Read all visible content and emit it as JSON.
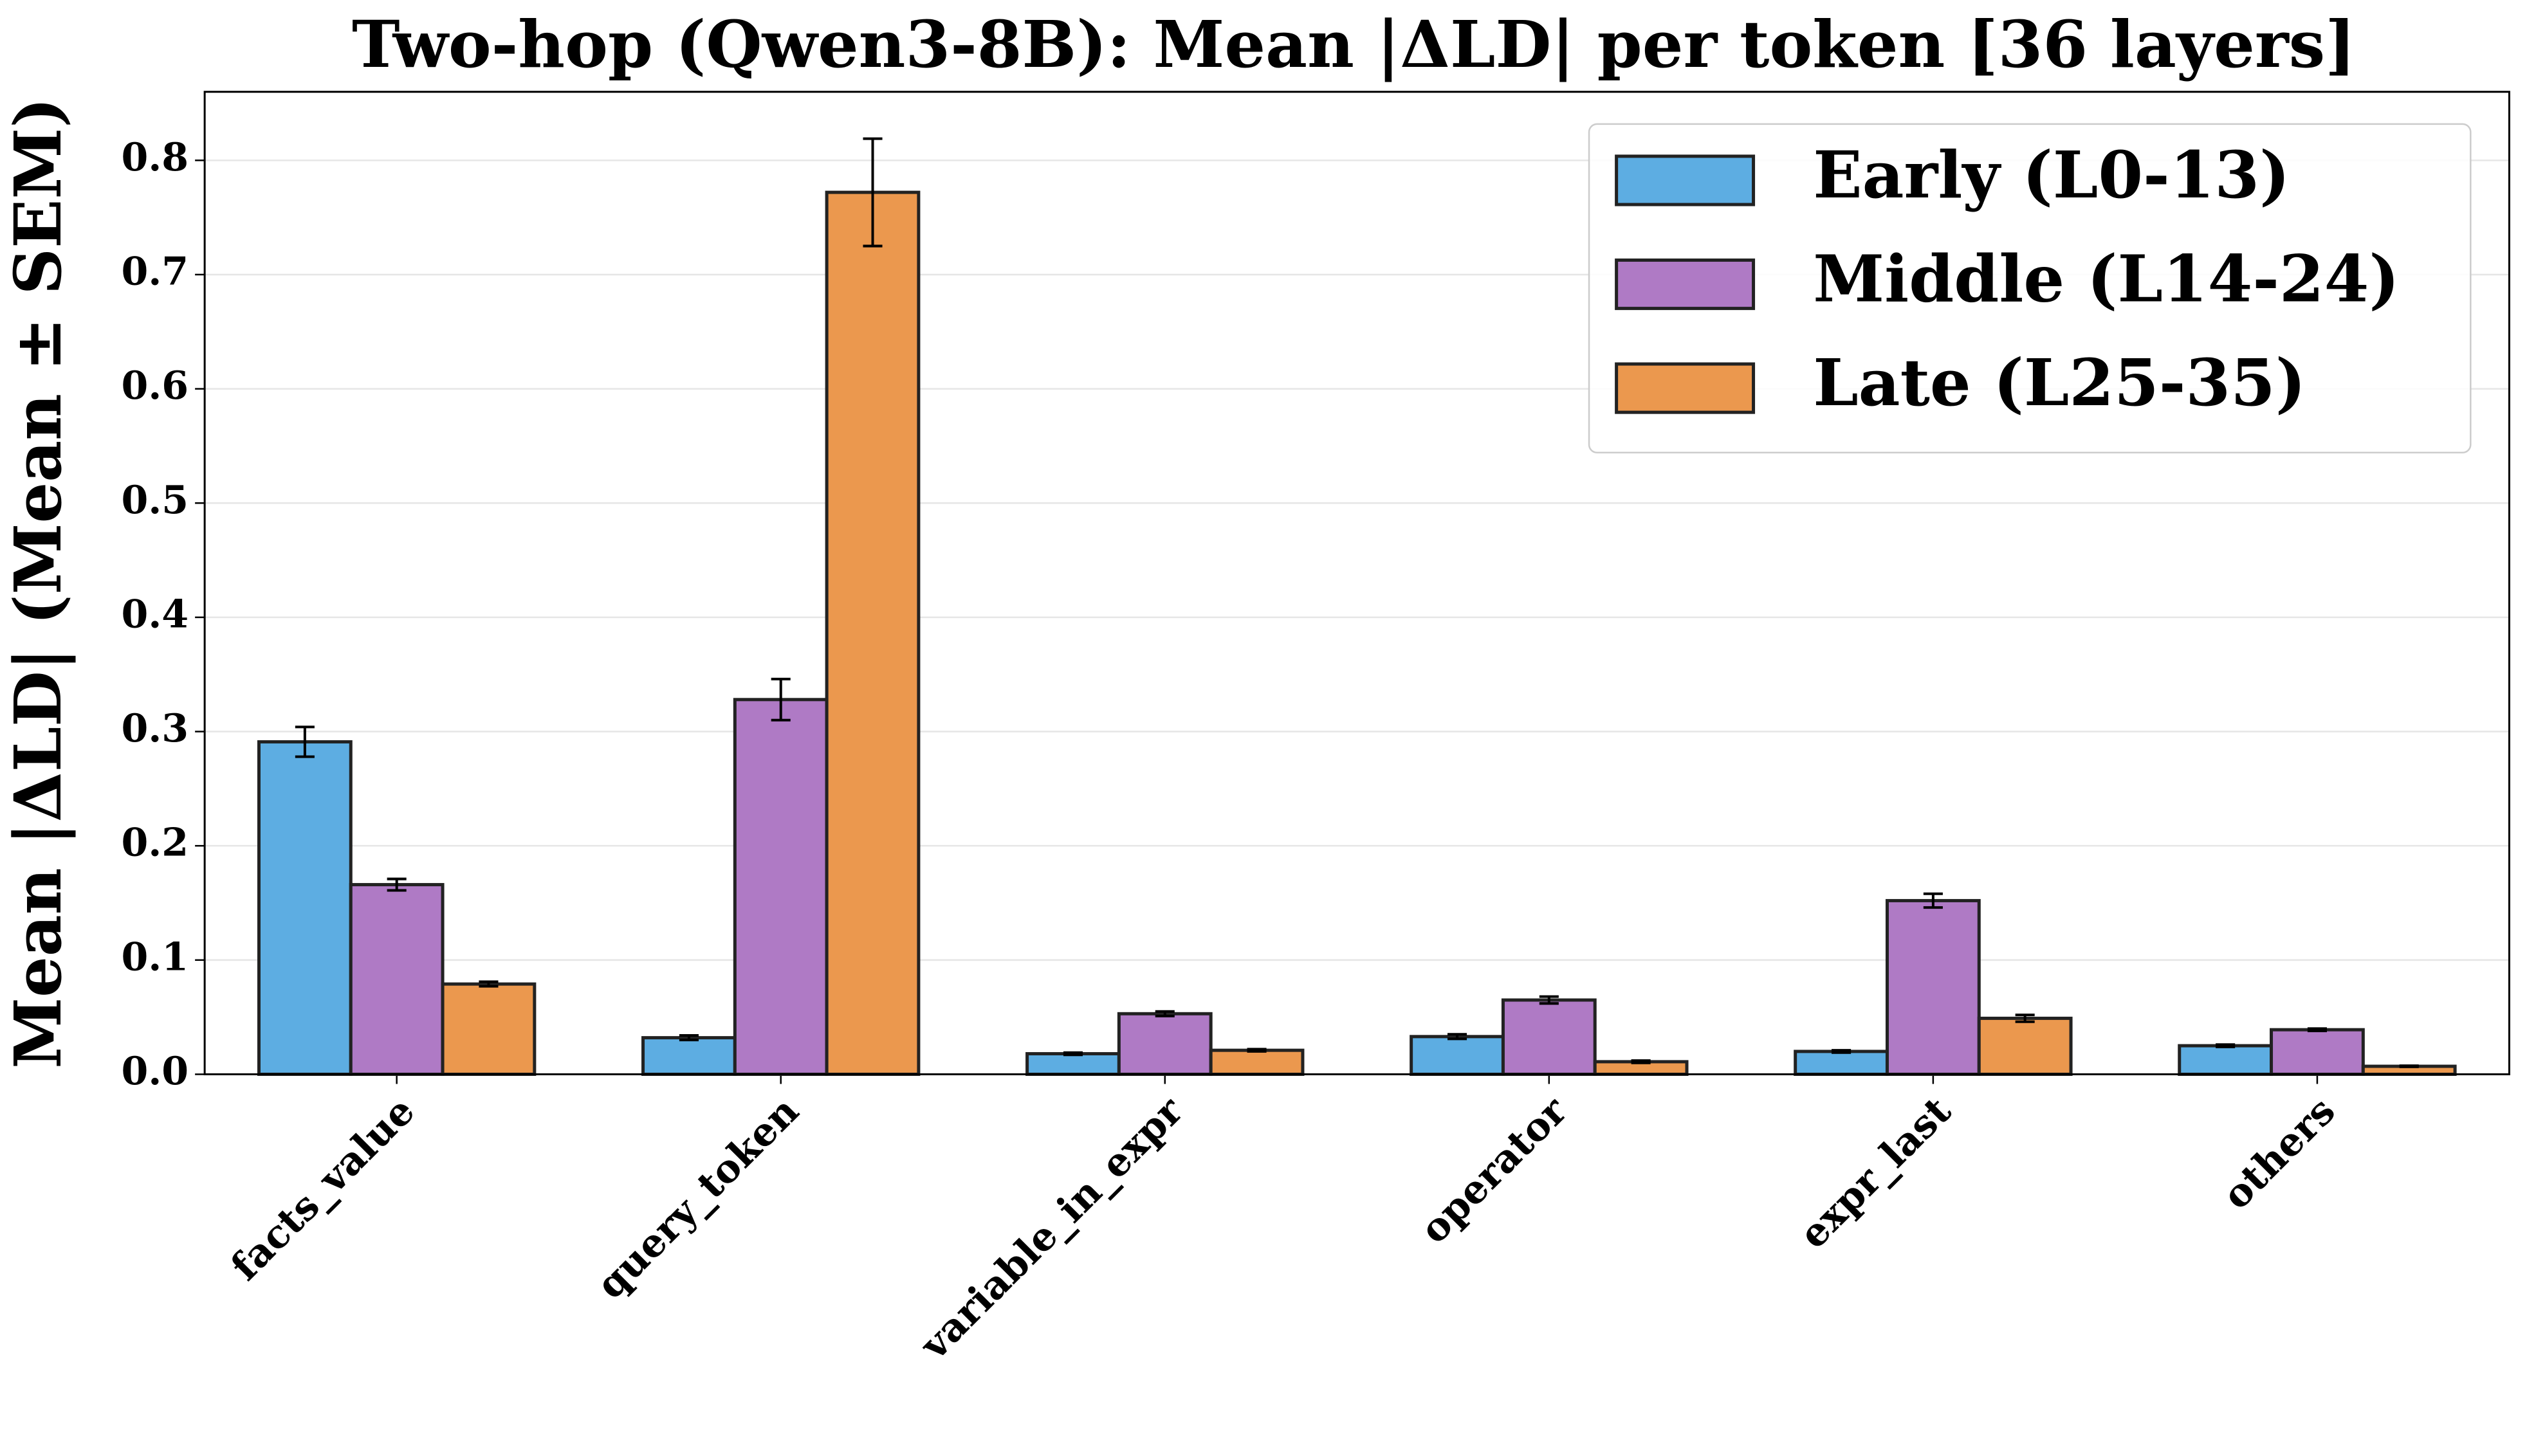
{
  "chart_data": {
    "type": "bar",
    "title": "Two-hop (Qwen3-8B): Mean |ΔLD| per token [36 layers]",
    "y_label": "Mean |ΔLD| (Mean ± SEM)",
    "categories": [
      "facts_value",
      "query_token",
      "variable_in_expr",
      "operator",
      "expr_last",
      "others"
    ],
    "series": [
      {
        "name": "Early (L0-13)",
        "color": "#5dade2",
        "values": [
          0.291,
          0.032,
          0.018,
          0.033,
          0.02,
          0.025
        ],
        "errors": [
          0.013,
          0.002,
          0.001,
          0.002,
          0.001,
          0.001
        ]
      },
      {
        "name": "Middle (L14-24)",
        "color": "#af7ac5",
        "values": [
          0.166,
          0.328,
          0.053,
          0.065,
          0.152,
          0.039
        ],
        "errors": [
          0.005,
          0.018,
          0.002,
          0.003,
          0.006,
          0.001
        ]
      },
      {
        "name": "Late (L25-35)",
        "color": "#eb984e",
        "values": [
          0.079,
          0.772,
          0.021,
          0.011,
          0.049,
          0.007
        ],
        "errors": [
          0.002,
          0.047,
          0.001,
          0.001,
          0.003,
          0.0005
        ]
      }
    ],
    "ylim": [
      0,
      0.86
    ],
    "yticks": [
      {
        "value": 0,
        "label": "0.0"
      },
      0.1,
      0.2,
      0.3,
      0.4,
      0.5,
      0.6,
      0.7,
      0.8
    ],
    "grid": true,
    "legend": "upper right"
  }
}
